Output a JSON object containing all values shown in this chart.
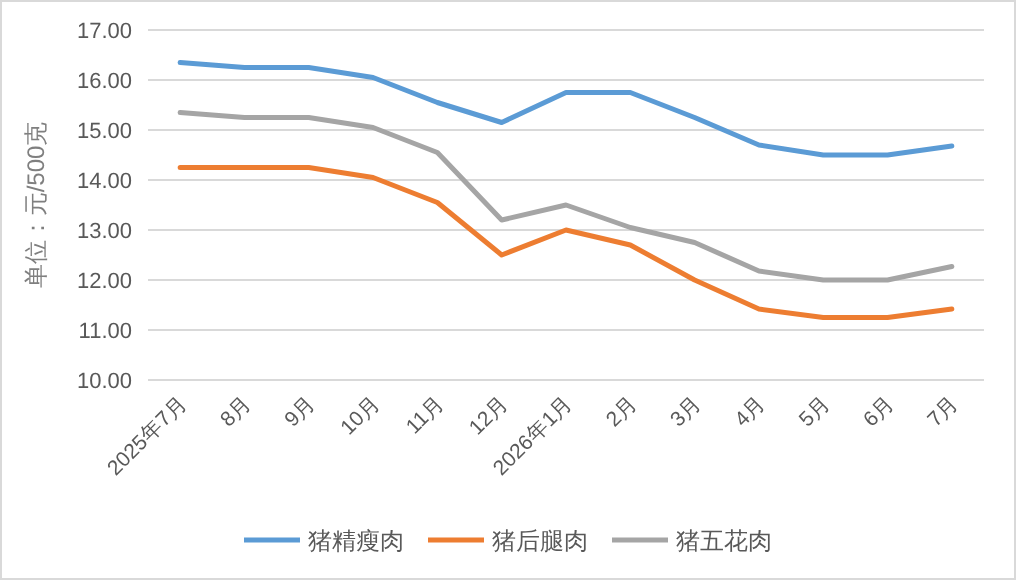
{
  "chart_data": {
    "type": "line",
    "ylabel": "单位：元/500克",
    "categories": [
      "2025年7月",
      "8月",
      "9月",
      "10月",
      "11月",
      "12月",
      "2026年1月",
      "2月",
      "3月",
      "4月",
      "5月",
      "6月",
      "7月"
    ],
    "series": [
      {
        "name": "猪精瘦肉",
        "color": "#5b9bd5",
        "values": [
          16.35,
          16.25,
          16.25,
          16.05,
          15.55,
          15.15,
          15.75,
          15.75,
          15.25,
          14.7,
          14.5,
          14.5,
          14.68
        ]
      },
      {
        "name": "猪后腿肉",
        "color": "#ed7d31",
        "values": [
          14.25,
          14.25,
          14.25,
          14.05,
          13.55,
          12.5,
          13.0,
          12.7,
          12.0,
          11.42,
          11.25,
          11.25,
          11.42
        ]
      },
      {
        "name": "猪五花肉",
        "color": "#a5a5a5",
        "values": [
          15.35,
          15.25,
          15.25,
          15.05,
          14.55,
          13.2,
          13.5,
          13.05,
          12.75,
          12.18,
          12.0,
          12.0,
          12.27
        ]
      }
    ],
    "ylim": [
      10,
      17
    ],
    "yticks": [
      {
        "value": 10,
        "label": "10.00"
      },
      {
        "value": 11,
        "label": "11.00"
      },
      {
        "value": 12,
        "label": "12.00"
      },
      {
        "value": 13,
        "label": "13.00"
      },
      {
        "value": 14,
        "label": "14.00"
      },
      {
        "value": 15,
        "label": "15.00"
      },
      {
        "value": 16,
        "label": "16.00"
      },
      {
        "value": 17,
        "label": "17.00"
      }
    ],
    "grid": "y",
    "legend": "bottom",
    "marker": "none",
    "line_style": "solid"
  }
}
